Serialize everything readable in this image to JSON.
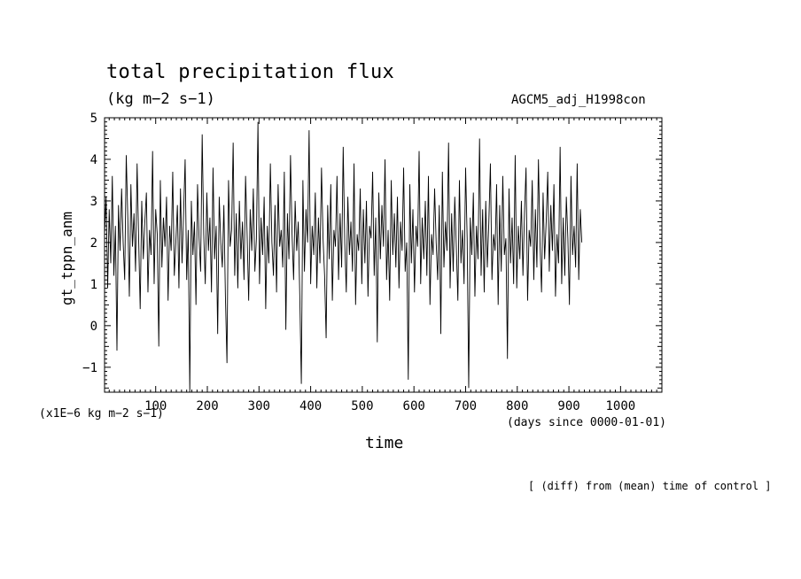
{
  "header": {
    "title": "total precipitation flux",
    "subtitle": "(kg m−2 s−1)",
    "run_name": "AGCM5_adj_H1998con"
  },
  "footer": {
    "y_unit": "(x1E−6 kg m−2 s−1)",
    "x_unit": "(days since 0000-01-01)",
    "note": "[ (diff) from (mean) time of control ]"
  },
  "chart_data": {
    "type": "line",
    "xlabel": "time",
    "ylabel": "gt_tppn_anm",
    "xlim": [
      1,
      1080
    ],
    "ylim": [
      -1.6,
      5.0
    ],
    "x_ticks": [
      100,
      200,
      300,
      400,
      500,
      600,
      700,
      800,
      900,
      1000
    ],
    "y_ticks": [
      -1,
      0,
      1,
      2,
      3,
      4,
      5
    ],
    "x_tick_labels": [
      "100",
      "200",
      "300",
      "400",
      "500",
      "600",
      "700",
      "800",
      "900",
      "1000"
    ],
    "y_tick_labels": [
      "−1",
      "0",
      "1",
      "2",
      "3",
      "4",
      "5"
    ],
    "grid": false,
    "line_color": "#000000",
    "series": [
      {
        "x_start": 1,
        "x_step": 3,
        "values": [
          2.2,
          3.1,
          0.9,
          2.8,
          1.5,
          3.6,
          1.2,
          2.4,
          -0.6,
          2.9,
          1.8,
          3.3,
          2.0,
          1.1,
          4.1,
          2.6,
          0.7,
          3.4,
          1.9,
          2.7,
          1.3,
          3.9,
          2.1,
          0.4,
          3.0,
          1.6,
          2.5,
          3.2,
          0.8,
          2.3,
          1.7,
          4.2,
          1.0,
          2.8,
          2.2,
          -0.5,
          3.5,
          1.4,
          2.6,
          1.9,
          3.1,
          0.6,
          2.4,
          1.8,
          3.7,
          1.2,
          2.0,
          2.9,
          0.9,
          3.3,
          1.5,
          2.7,
          4.0,
          1.1,
          2.3,
          -1.6,
          3.0,
          1.7,
          2.5,
          0.5,
          3.4,
          2.1,
          1.3,
          4.6,
          2.2,
          1.0,
          3.2,
          1.8,
          2.6,
          0.8,
          3.8,
          1.6,
          2.4,
          -0.2,
          3.1,
          2.0,
          1.4,
          2.9,
          0.7,
          -0.9,
          3.5,
          1.9,
          2.3,
          4.4,
          1.2,
          2.7,
          0.9,
          3.0,
          1.6,
          2.5,
          1.1,
          3.6,
          2.2,
          0.6,
          2.8,
          1.8,
          3.3,
          1.3,
          2.1,
          4.9,
          1.0,
          2.6,
          1.7,
          3.1,
          0.4,
          2.4,
          1.5,
          3.9,
          2.0,
          1.2,
          2.9,
          0.8,
          3.4,
          1.9,
          2.3,
          1.4,
          3.7,
          -0.1,
          2.7,
          1.6,
          4.1,
          2.2,
          1.1,
          3.0,
          1.8,
          2.5,
          0.7,
          -1.4,
          3.5,
          1.3,
          2.8,
          2.0,
          4.7,
          1.0,
          2.4,
          1.7,
          3.2,
          0.9,
          2.6,
          1.5,
          3.8,
          2.1,
          1.2,
          -0.3,
          2.9,
          1.6,
          3.4,
          0.6,
          2.3,
          1.9,
          3.6,
          1.1,
          2.7,
          1.4,
          4.3,
          2.0,
          0.8,
          3.1,
          1.7,
          2.5,
          1.3,
          3.9,
          0.5,
          2.2,
          1.8,
          3.3,
          1.0,
          2.8,
          1.5,
          3.0,
          0.7,
          2.4,
          2.1,
          3.7,
          1.2,
          2.6,
          -0.4,
          3.2,
          1.6,
          2.9,
          1.9,
          4.0,
          1.1,
          2.3,
          0.6,
          3.5,
          1.7,
          2.7,
          1.4,
          3.1,
          0.9,
          2.5,
          1.8,
          3.8,
          1.3,
          2.0,
          -1.3,
          3.4,
          1.5,
          2.8,
          0.8,
          2.4,
          1.9,
          4.2,
          1.0,
          2.6,
          1.6,
          3.0,
          1.2,
          3.6,
          0.5,
          2.2,
          1.7,
          3.3,
          2.0,
          1.1,
          2.9,
          -0.2,
          3.7,
          1.4,
          2.5,
          1.8,
          4.4,
          0.9,
          2.7,
          1.3,
          3.1,
          1.9,
          0.6,
          3.5,
          1.5,
          2.3,
          1.0,
          3.8,
          2.1,
          -1.5,
          2.6,
          1.7,
          3.2,
          0.7,
          2.4,
          1.6,
          4.5,
          1.2,
          2.8,
          0.8,
          3.0,
          1.4,
          2.5,
          3.9,
          1.1,
          2.2,
          1.8,
          3.4,
          0.5,
          2.9,
          1.3,
          3.6,
          1.7,
          2.1,
          -0.8,
          3.3,
          1.5,
          2.6,
          1.0,
          4.1,
          0.9,
          2.4,
          1.6,
          3.0,
          1.2,
          2.7,
          3.8,
          0.6,
          2.3,
          1.9,
          3.5,
          1.1,
          2.8,
          1.4,
          4.0,
          2.0,
          0.8,
          3.2,
          1.6,
          2.5,
          3.7,
          1.3,
          2.9,
          1.8,
          3.4,
          0.7,
          2.2,
          1.5,
          4.3,
          1.0,
          2.6,
          1.2,
          3.1,
          2.1,
          0.5,
          3.6,
          1.7,
          2.4,
          1.4,
          3.9,
          1.1,
          2.8,
          2.0
        ]
      }
    ]
  }
}
